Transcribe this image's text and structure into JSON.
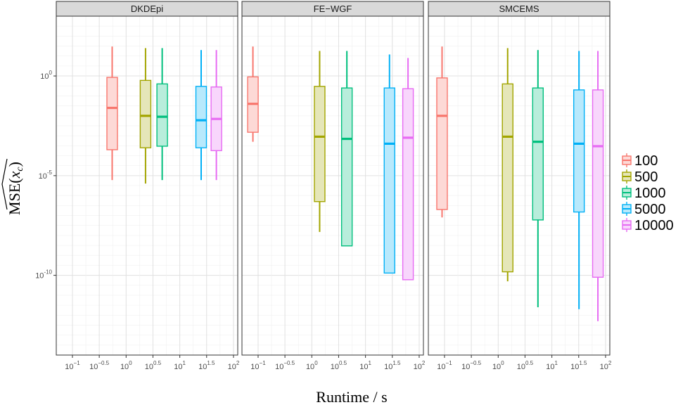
{
  "chart_data": {
    "type": "box",
    "xlabel": "Runtime / s",
    "ylabel": "MSE(x_c)",
    "x_scale": "log10",
    "y_scale": "log10",
    "xlim": [
      0.05,
      120
    ],
    "ylim": [
      1e-14,
      1000
    ],
    "x_ticks": [
      {
        "label": "10",
        "sup": "−1",
        "value": 0.1
      },
      {
        "label": "10",
        "sup": "−0.5",
        "value": 0.316
      },
      {
        "label": "10",
        "sup": "0",
        "value": 1
      },
      {
        "label": "10",
        "sup": "0.5",
        "value": 3.16
      },
      {
        "label": "10",
        "sup": "1",
        "value": 10
      },
      {
        "label": "10",
        "sup": "1.5",
        "value": 31.6
      },
      {
        "label": "10",
        "sup": "2",
        "value": 100
      }
    ],
    "y_ticks": [
      {
        "label": "10",
        "sup": "0",
        "value": 1
      },
      {
        "label": "10",
        "sup": "-5",
        "value": 1e-05
      },
      {
        "label": "10",
        "sup": "-10",
        "value": 1e-10
      }
    ],
    "grid": true,
    "legend_position": "right",
    "legend": [
      {
        "label": "100",
        "color": "#F8766D"
      },
      {
        "label": "500",
        "color": "#A3A500"
      },
      {
        "label": "1000",
        "color": "#00BF7D"
      },
      {
        "label": "5000",
        "color": "#00B0F6"
      },
      {
        "label": "10000",
        "color": "#E76BF3"
      }
    ],
    "panels": [
      {
        "name": "DKDEpi",
        "boxes": [
          {
            "series": "100",
            "x": 0.55,
            "whisker_low": 6e-06,
            "q1": 0.0002,
            "median": 0.025,
            "q3": 0.85,
            "whisker_high": 30
          },
          {
            "series": "500",
            "x": 2.3,
            "whisker_low": 4e-06,
            "q1": 0.00025,
            "median": 0.01,
            "q3": 0.6,
            "whisker_high": 25
          },
          {
            "series": "1000",
            "x": 4.7,
            "whisker_low": 6e-06,
            "q1": 0.0003,
            "median": 0.009,
            "q3": 0.4,
            "whisker_high": 25
          },
          {
            "series": "5000",
            "x": 25,
            "whisker_low": 6e-06,
            "q1": 0.00025,
            "median": 0.006,
            "q3": 0.3,
            "whisker_high": 20
          },
          {
            "series": "10000",
            "x": 48,
            "whisker_low": 6e-06,
            "q1": 0.00018,
            "median": 0.007,
            "q3": 0.28,
            "whisker_high": 20
          }
        ]
      },
      {
        "name": "FE−WGF",
        "boxes": [
          {
            "series": "100",
            "x": 0.08,
            "whisker_low": 0.0005,
            "q1": 0.0015,
            "median": 0.04,
            "q3": 0.9,
            "whisker_high": 30
          },
          {
            "series": "500",
            "x": 1.4,
            "whisker_low": 1.5e-08,
            "q1": 5e-07,
            "median": 0.0009,
            "q3": 0.3,
            "whisker_high": 18
          },
          {
            "series": "1000",
            "x": 4.5,
            "whisker_low": 3e-09,
            "q1": 3e-09,
            "median": 0.0007,
            "q3": 0.25,
            "whisker_high": 18
          },
          {
            "series": "5000",
            "x": 28,
            "whisker_low": 1.3e-10,
            "q1": 1.3e-10,
            "median": 0.0004,
            "q3": 0.25,
            "whisker_high": 12
          },
          {
            "series": "10000",
            "x": 62,
            "whisker_low": 6e-11,
            "q1": 6e-11,
            "median": 0.0008,
            "q3": 0.23,
            "whisker_high": 8
          }
        ]
      },
      {
        "name": "SMCEMS",
        "boxes": [
          {
            "series": "100",
            "x": 0.09,
            "whisker_low": 8e-08,
            "q1": 2e-07,
            "median": 0.01,
            "q3": 0.8,
            "whisker_high": 30
          },
          {
            "series": "500",
            "x": 1.5,
            "whisker_low": 5e-11,
            "q1": 1.5e-10,
            "median": 0.0009,
            "q3": 0.4,
            "whisker_high": 25
          },
          {
            "series": "1000",
            "x": 5.5,
            "whisker_low": 2.5e-12,
            "q1": 6e-08,
            "median": 0.0005,
            "q3": 0.25,
            "whisker_high": 20
          },
          {
            "series": "5000",
            "x": 32,
            "whisker_low": 2e-12,
            "q1": 1.5e-07,
            "median": 0.0004,
            "q3": 0.2,
            "whisker_high": 18
          },
          {
            "series": "10000",
            "x": 72,
            "whisker_low": 5e-13,
            "q1": 8e-11,
            "median": 0.0003,
            "q3": 0.2,
            "whisker_high": 18
          }
        ]
      }
    ]
  }
}
